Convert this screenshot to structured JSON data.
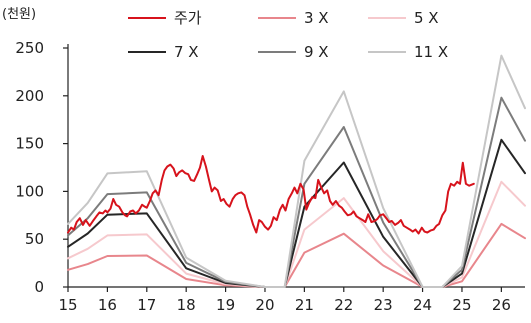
{
  "chart_data": {
    "type": "line",
    "unit_label": "(천원)",
    "ylim": [
      0,
      250
    ],
    "yticks": [
      0,
      50,
      100,
      150,
      200,
      250
    ],
    "xlim": [
      15,
      26.6
    ],
    "xticks": [
      15,
      16,
      17,
      18,
      19,
      20,
      21,
      22,
      23,
      24,
      25,
      26
    ],
    "grid": false,
    "legend": "top",
    "series": [
      {
        "name": "주가",
        "color": "#d7131c",
        "width": 2,
        "points": [
          [
            15.0,
            57
          ],
          [
            15.08,
            62
          ],
          [
            15.15,
            60
          ],
          [
            15.22,
            68
          ],
          [
            15.3,
            72
          ],
          [
            15.38,
            65
          ],
          [
            15.45,
            70
          ],
          [
            15.55,
            64
          ],
          [
            15.65,
            70
          ],
          [
            15.72,
            74
          ],
          [
            15.8,
            78
          ],
          [
            15.88,
            77
          ],
          [
            15.95,
            80
          ],
          [
            16.0,
            78
          ],
          [
            16.08,
            82
          ],
          [
            16.15,
            92
          ],
          [
            16.22,
            86
          ],
          [
            16.3,
            84
          ],
          [
            16.38,
            78
          ],
          [
            16.45,
            75
          ],
          [
            16.5,
            74
          ],
          [
            16.58,
            79
          ],
          [
            16.65,
            80
          ],
          [
            16.72,
            77
          ],
          [
            16.8,
            80
          ],
          [
            16.88,
            86
          ],
          [
            16.95,
            84
          ],
          [
            17.0,
            83
          ],
          [
            17.08,
            90
          ],
          [
            17.15,
            98
          ],
          [
            17.22,
            101
          ],
          [
            17.3,
            96
          ],
          [
            17.38,
            112
          ],
          [
            17.45,
            122
          ],
          [
            17.52,
            126
          ],
          [
            17.6,
            128
          ],
          [
            17.68,
            124
          ],
          [
            17.75,
            116
          ],
          [
            17.82,
            120
          ],
          [
            17.9,
            122
          ],
          [
            17.98,
            119
          ],
          [
            18.05,
            118
          ],
          [
            18.12,
            112
          ],
          [
            18.2,
            111
          ],
          [
            18.28,
            118
          ],
          [
            18.35,
            125
          ],
          [
            18.42,
            137
          ],
          [
            18.5,
            126
          ],
          [
            18.58,
            112
          ],
          [
            18.65,
            100
          ],
          [
            18.72,
            104
          ],
          [
            18.8,
            101
          ],
          [
            18.88,
            90
          ],
          [
            18.95,
            92
          ],
          [
            19.02,
            87
          ],
          [
            19.1,
            84
          ],
          [
            19.18,
            92
          ],
          [
            19.25,
            96
          ],
          [
            19.32,
            98
          ],
          [
            19.4,
            99
          ],
          [
            19.48,
            96
          ],
          [
            19.55,
            84
          ],
          [
            19.62,
            76
          ],
          [
            19.7,
            65
          ],
          [
            19.78,
            57
          ],
          [
            19.85,
            70
          ],
          [
            19.92,
            68
          ],
          [
            20.0,
            63
          ],
          [
            20.08,
            60
          ],
          [
            20.15,
            64
          ],
          [
            20.22,
            73
          ],
          [
            20.3,
            70
          ],
          [
            20.38,
            81
          ],
          [
            20.45,
            86
          ],
          [
            20.52,
            80
          ],
          [
            20.6,
            92
          ],
          [
            20.68,
            98
          ],
          [
            20.75,
            104
          ],
          [
            20.82,
            98
          ],
          [
            20.9,
            108
          ],
          [
            20.98,
            102
          ],
          [
            21.05,
            81
          ],
          [
            21.12,
            88
          ],
          [
            21.2,
            94
          ],
          [
            21.28,
            93
          ],
          [
            21.35,
            112
          ],
          [
            21.42,
            105
          ],
          [
            21.5,
            98
          ],
          [
            21.58,
            101
          ],
          [
            21.65,
            90
          ],
          [
            21.72,
            86
          ],
          [
            21.8,
            90
          ],
          [
            21.88,
            85
          ],
          [
            21.95,
            83
          ],
          [
            22.02,
            79
          ],
          [
            22.1,
            75
          ],
          [
            22.18,
            76
          ],
          [
            22.25,
            79
          ],
          [
            22.32,
            74
          ],
          [
            22.4,
            72
          ],
          [
            22.48,
            70
          ],
          [
            22.55,
            68
          ],
          [
            22.62,
            76
          ],
          [
            22.7,
            68
          ],
          [
            22.78,
            69
          ],
          [
            22.85,
            71
          ],
          [
            22.92,
            75
          ],
          [
            23.0,
            76
          ],
          [
            23.08,
            72
          ],
          [
            23.15,
            68
          ],
          [
            23.22,
            69
          ],
          [
            23.3,
            65
          ],
          [
            23.38,
            67
          ],
          [
            23.45,
            70
          ],
          [
            23.52,
            64
          ],
          [
            23.6,
            62
          ],
          [
            23.68,
            60
          ],
          [
            23.75,
            58
          ],
          [
            23.82,
            60
          ],
          [
            23.9,
            56
          ],
          [
            23.98,
            62
          ],
          [
            24.05,
            58
          ],
          [
            24.12,
            57
          ],
          [
            24.2,
            59
          ],
          [
            24.28,
            60
          ],
          [
            24.35,
            64
          ],
          [
            24.42,
            66
          ],
          [
            24.5,
            75
          ],
          [
            24.58,
            80
          ],
          [
            24.65,
            100
          ],
          [
            24.72,
            108
          ],
          [
            24.8,
            106
          ],
          [
            24.88,
            110
          ],
          [
            24.95,
            108
          ],
          [
            25.02,
            130
          ],
          [
            25.1,
            108
          ],
          [
            25.18,
            106
          ],
          [
            25.3,
            108
          ]
        ]
      },
      {
        "name": "3 X",
        "color": "#e8868c",
        "width": 2,
        "points": []
      },
      {
        "name": "5 X",
        "color": "#f6c9cd",
        "width": 2,
        "points": []
      },
      {
        "name": "7 X",
        "color": "#262626",
        "width": 2,
        "points": []
      },
      {
        "name": "9 X",
        "color": "#7c7c7c",
        "width": 2,
        "points": []
      },
      {
        "name": "11 X",
        "color": "#c6c6c6",
        "width": 2,
        "points": []
      }
    ]
  }
}
